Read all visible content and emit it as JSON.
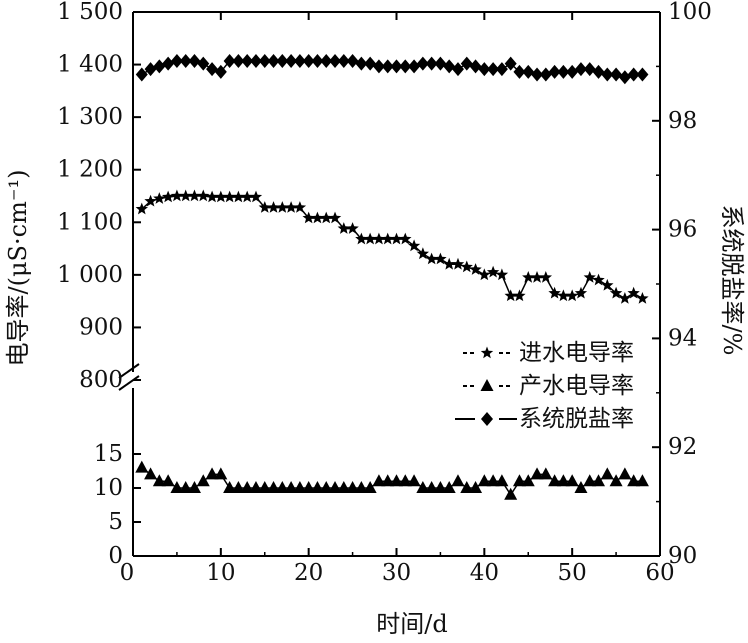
{
  "chart_data": {
    "type": "line",
    "title": "",
    "xlabel": "时间/d",
    "ylabel_left": "电导率/(μS·cm⁻¹)",
    "ylabel_right": "系统脱盐率/%",
    "xlim": [
      0,
      60
    ],
    "x_ticks": [
      "10",
      "20",
      "30",
      "40",
      "50",
      "60"
    ],
    "y_left_upper_ticks": [
      "800",
      "900",
      "1 000",
      "1 100",
      "1 200",
      "1 300",
      "1 400",
      "1 500"
    ],
    "y_left_lower_ticks": [
      "0",
      "5",
      "10",
      "15"
    ],
    "y_right_ticks": [
      "90",
      "92",
      "94",
      "96",
      "98",
      "100"
    ],
    "y_left_upper_range": [
      800,
      1500
    ],
    "y_left_lower_range": [
      0,
      20
    ],
    "y_right_range": [
      90,
      100
    ],
    "legend_position": "right-middle",
    "series": [
      {
        "name": "进水电导率",
        "marker": "star",
        "axis": "left",
        "x": [
          1,
          2,
          3,
          4,
          5,
          6,
          7,
          8,
          9,
          10,
          11,
          12,
          13,
          14,
          15,
          16,
          17,
          18,
          19,
          20,
          21,
          22,
          23,
          24,
          25,
          26,
          27,
          28,
          29,
          30,
          31,
          32,
          33,
          34,
          35,
          36,
          37,
          38,
          39,
          40,
          41,
          42,
          43,
          44,
          45,
          46,
          47,
          48,
          49,
          50,
          51,
          52,
          53,
          54,
          55,
          56,
          57,
          58
        ],
        "values": [
          1125,
          1140,
          1145,
          1148,
          1150,
          1150,
          1150,
          1150,
          1148,
          1148,
          1148,
          1148,
          1148,
          1148,
          1128,
          1128,
          1128,
          1128,
          1128,
          1108,
          1108,
          1108,
          1108,
          1088,
          1088,
          1068,
          1068,
          1068,
          1068,
          1068,
          1068,
          1055,
          1040,
          1030,
          1030,
          1020,
          1020,
          1015,
          1010,
          1000,
          1005,
          1000,
          960,
          960,
          995,
          995,
          995,
          965,
          960,
          960,
          965,
          995,
          990,
          980,
          965,
          955,
          965,
          955
        ]
      },
      {
        "name": "产水电导率",
        "marker": "triangle",
        "axis": "left",
        "x": [
          1,
          2,
          3,
          4,
          5,
          6,
          7,
          8,
          9,
          10,
          11,
          12,
          13,
          14,
          15,
          16,
          17,
          18,
          19,
          20,
          21,
          22,
          23,
          24,
          25,
          26,
          27,
          28,
          29,
          30,
          31,
          32,
          33,
          34,
          35,
          36,
          37,
          38,
          39,
          40,
          41,
          42,
          43,
          44,
          45,
          46,
          47,
          48,
          49,
          50,
          51,
          52,
          53,
          54,
          55,
          56,
          57,
          58
        ],
        "values": [
          13,
          12,
          11,
          11,
          10,
          10,
          10,
          11,
          12,
          12,
          10,
          10,
          10,
          10,
          10,
          10,
          10,
          10,
          10,
          10,
          10,
          10,
          10,
          10,
          10,
          10,
          10,
          11,
          11,
          11,
          11,
          11,
          10,
          10,
          10,
          10,
          11,
          10,
          10,
          11,
          11,
          11,
          9,
          11,
          11,
          12,
          12,
          11,
          11,
          11,
          10,
          11,
          11,
          12,
          11,
          12,
          11,
          11
        ]
      },
      {
        "name": "系统脱盐率",
        "marker": "diamond",
        "axis": "right",
        "x": [
          1,
          2,
          3,
          4,
          5,
          6,
          7,
          8,
          9,
          10,
          11,
          12,
          13,
          14,
          15,
          16,
          17,
          18,
          19,
          20,
          21,
          22,
          23,
          24,
          25,
          26,
          27,
          28,
          29,
          30,
          31,
          32,
          33,
          34,
          35,
          36,
          37,
          38,
          39,
          40,
          41,
          42,
          43,
          44,
          45,
          46,
          47,
          48,
          49,
          50,
          51,
          52,
          53,
          54,
          55,
          56,
          57,
          58
        ],
        "values": [
          98.85,
          98.95,
          99.0,
          99.05,
          99.1,
          99.1,
          99.1,
          99.05,
          98.95,
          98.9,
          99.1,
          99.1,
          99.1,
          99.1,
          99.1,
          99.1,
          99.1,
          99.1,
          99.1,
          99.1,
          99.1,
          99.1,
          99.1,
          99.1,
          99.1,
          99.05,
          99.05,
          99.0,
          99.0,
          99.0,
          99.0,
          99.0,
          99.05,
          99.05,
          99.05,
          99.0,
          98.95,
          99.05,
          99.0,
          98.95,
          98.95,
          98.95,
          99.05,
          98.9,
          98.9,
          98.85,
          98.85,
          98.9,
          98.9,
          98.9,
          98.95,
          98.95,
          98.9,
          98.85,
          98.85,
          98.8,
          98.85,
          98.85
        ]
      }
    ]
  }
}
